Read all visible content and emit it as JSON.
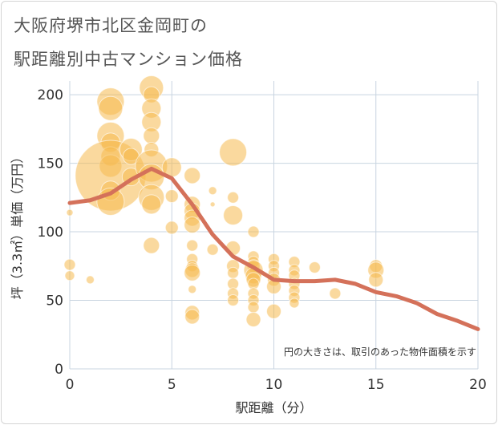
{
  "title_lines": [
    "大阪府堺市北区金岡町の",
    "駅距離別中古マンション価格"
  ],
  "colors": {
    "bubble": "#f5b94f",
    "line": "#d4715a",
    "grid": "#c8d4e0",
    "axis_text": "#333333",
    "note_text": "#333333"
  },
  "chart_data": {
    "type": "scatter",
    "xlabel": "駅距離（分）",
    "ylabel": "坪（3.3㎡）単価（万円）",
    "xlim": [
      0,
      20
    ],
    "ylim": [
      0,
      210
    ],
    "x_ticks": [
      0,
      5,
      10,
      15,
      20
    ],
    "y_ticks": [
      0,
      50,
      100,
      150,
      200
    ],
    "grid": true,
    "annotation": "円の大きさは、取引のあった物件面積を示す",
    "series": [
      {
        "type": "bubble",
        "points": [
          {
            "x": 0,
            "y": 114,
            "s": 4
          },
          {
            "x": 0,
            "y": 76,
            "s": 7
          },
          {
            "x": 0,
            "y": 68,
            "s": 6
          },
          {
            "x": 1,
            "y": 65,
            "s": 5
          },
          {
            "x": 2,
            "y": 195,
            "s": 17
          },
          {
            "x": 2,
            "y": 190,
            "s": 15
          },
          {
            "x": 2,
            "y": 170,
            "s": 17
          },
          {
            "x": 2,
            "y": 165,
            "s": 12
          },
          {
            "x": 2,
            "y": 155,
            "s": 12
          },
          {
            "x": 2,
            "y": 148,
            "s": 14
          },
          {
            "x": 2,
            "y": 141,
            "s": 44
          },
          {
            "x": 2,
            "y": 130,
            "s": 12
          },
          {
            "x": 2,
            "y": 122,
            "s": 17
          },
          {
            "x": 3,
            "y": 160,
            "s": 14
          },
          {
            "x": 3,
            "y": 155,
            "s": 10
          },
          {
            "x": 3,
            "y": 140,
            "s": 11
          },
          {
            "x": 4,
            "y": 205,
            "s": 15
          },
          {
            "x": 4,
            "y": 200,
            "s": 10
          },
          {
            "x": 4,
            "y": 190,
            "s": 12
          },
          {
            "x": 4,
            "y": 180,
            "s": 12
          },
          {
            "x": 4,
            "y": 170,
            "s": 10
          },
          {
            "x": 4,
            "y": 160,
            "s": 9
          },
          {
            "x": 4,
            "y": 148,
            "s": 20
          },
          {
            "x": 4,
            "y": 140,
            "s": 16
          },
          {
            "x": 4,
            "y": 125,
            "s": 16
          },
          {
            "x": 4,
            "y": 120,
            "s": 12
          },
          {
            "x": 4,
            "y": 90,
            "s": 10
          },
          {
            "x": 5,
            "y": 147,
            "s": 12
          },
          {
            "x": 5,
            "y": 126,
            "s": 8
          },
          {
            "x": 5,
            "y": 103,
            "s": 8
          },
          {
            "x": 6,
            "y": 141,
            "s": 10
          },
          {
            "x": 6,
            "y": 120,
            "s": 10
          },
          {
            "x": 6,
            "y": 115,
            "s": 10
          },
          {
            "x": 6,
            "y": 110,
            "s": 10
          },
          {
            "x": 6,
            "y": 105,
            "s": 10
          },
          {
            "x": 6,
            "y": 90,
            "s": 7
          },
          {
            "x": 6,
            "y": 80,
            "s": 7
          },
          {
            "x": 6,
            "y": 75,
            "s": 7
          },
          {
            "x": 6,
            "y": 72,
            "s": 9
          },
          {
            "x": 6,
            "y": 70,
            "s": 10
          },
          {
            "x": 6,
            "y": 58,
            "s": 5
          },
          {
            "x": 6,
            "y": 41,
            "s": 9
          },
          {
            "x": 6,
            "y": 38,
            "s": 9
          },
          {
            "x": 7,
            "y": 130,
            "s": 5
          },
          {
            "x": 7,
            "y": 120,
            "s": 3
          },
          {
            "x": 7,
            "y": 87,
            "s": 7
          },
          {
            "x": 8,
            "y": 158,
            "s": 17
          },
          {
            "x": 8,
            "y": 125,
            "s": 7
          },
          {
            "x": 8,
            "y": 112,
            "s": 12
          },
          {
            "x": 8,
            "y": 88,
            "s": 9
          },
          {
            "x": 8,
            "y": 75,
            "s": 8
          },
          {
            "x": 8,
            "y": 70,
            "s": 7
          },
          {
            "x": 8,
            "y": 62,
            "s": 7
          },
          {
            "x": 8,
            "y": 55,
            "s": 7
          },
          {
            "x": 8,
            "y": 50,
            "s": 7
          },
          {
            "x": 9,
            "y": 100,
            "s": 7
          },
          {
            "x": 9,
            "y": 82,
            "s": 7
          },
          {
            "x": 9,
            "y": 78,
            "s": 7
          },
          {
            "x": 9,
            "y": 75,
            "s": 8
          },
          {
            "x": 9,
            "y": 72,
            "s": 12
          },
          {
            "x": 9,
            "y": 68,
            "s": 10
          },
          {
            "x": 9,
            "y": 65,
            "s": 9
          },
          {
            "x": 9,
            "y": 62,
            "s": 7
          },
          {
            "x": 9,
            "y": 55,
            "s": 7
          },
          {
            "x": 9,
            "y": 50,
            "s": 7
          },
          {
            "x": 9,
            "y": 45,
            "s": 7
          },
          {
            "x": 9,
            "y": 36,
            "s": 9
          },
          {
            "x": 10,
            "y": 80,
            "s": 7
          },
          {
            "x": 10,
            "y": 75,
            "s": 7
          },
          {
            "x": 10,
            "y": 70,
            "s": 7
          },
          {
            "x": 10,
            "y": 65,
            "s": 8
          },
          {
            "x": 10,
            "y": 60,
            "s": 9
          },
          {
            "x": 10,
            "y": 42,
            "s": 9
          },
          {
            "x": 11,
            "y": 78,
            "s": 7
          },
          {
            "x": 11,
            "y": 72,
            "s": 7
          },
          {
            "x": 11,
            "y": 68,
            "s": 7
          },
          {
            "x": 11,
            "y": 62,
            "s": 7
          },
          {
            "x": 11,
            "y": 57,
            "s": 7
          },
          {
            "x": 11,
            "y": 52,
            "s": 7
          },
          {
            "x": 11,
            "y": 48,
            "s": 6
          },
          {
            "x": 12,
            "y": 74,
            "s": 7
          },
          {
            "x": 13,
            "y": 55,
            "s": 7
          },
          {
            "x": 15,
            "y": 75,
            "s": 8
          },
          {
            "x": 15,
            "y": 72,
            "s": 10
          },
          {
            "x": 15,
            "y": 65,
            "s": 9
          }
        ]
      },
      {
        "type": "line",
        "x": [
          0,
          1,
          2,
          3,
          4,
          5,
          6,
          7,
          8,
          9,
          10,
          11,
          12,
          13,
          14,
          15,
          16,
          17,
          18,
          19,
          20
        ],
        "y": [
          121,
          123,
          128,
          138,
          146,
          139,
          120,
          98,
          82,
          74,
          65,
          64,
          64,
          65,
          62,
          56,
          53,
          48,
          40,
          35,
          29
        ]
      }
    ]
  }
}
